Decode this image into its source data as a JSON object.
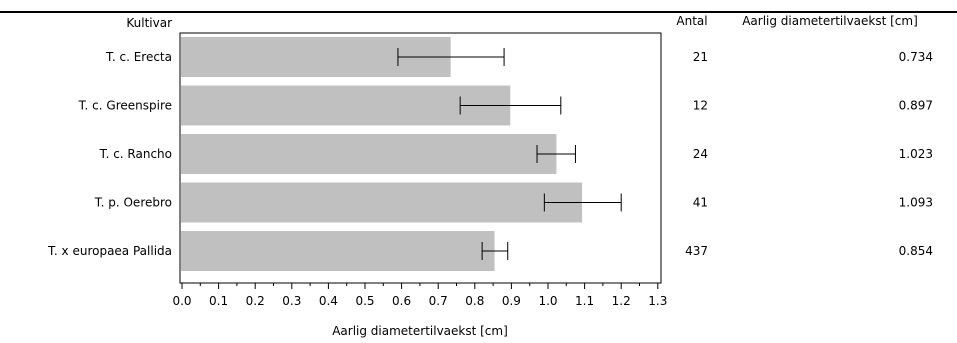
{
  "chart_data": {
    "type": "bar",
    "orientation": "horizontal",
    "category_header": "Kultivar",
    "count_header": "Antal",
    "value_header": "Aarlig diametertilvaekst [cm]",
    "xlabel": "Aarlig diametertilvaekst [cm]",
    "xlim": [
      0,
      1.3
    ],
    "xticks": [
      "0.0",
      "0.1",
      "0.2",
      "0.3",
      "0.4",
      "0.5",
      "0.6",
      "0.7",
      "0.8",
      "0.9",
      "1.0",
      "1.1",
      "1.2",
      "1.3"
    ],
    "grid": false,
    "bar_color": "#c0c0c0",
    "rows": [
      {
        "category": "T. c. Erecta",
        "count": "21",
        "value": 0.734,
        "value_label": "0.734",
        "err_low": 0.59,
        "err_high": 0.88
      },
      {
        "category": "T. c. Greenspire",
        "count": "12",
        "value": 0.897,
        "value_label": "0.897",
        "err_low": 0.76,
        "err_high": 1.035
      },
      {
        "category": "T. c. Rancho",
        "count": "24",
        "value": 1.023,
        "value_label": "1.023",
        "err_low": 0.97,
        "err_high": 1.075
      },
      {
        "category": "T. p. Oerebro",
        "count": "41",
        "value": 1.093,
        "value_label": "1.093",
        "err_low": 0.99,
        "err_high": 1.2
      },
      {
        "category": "T. x europaea Pallida",
        "count": "437",
        "value": 0.854,
        "value_label": "0.854",
        "err_low": 0.82,
        "err_high": 0.89
      }
    ]
  }
}
